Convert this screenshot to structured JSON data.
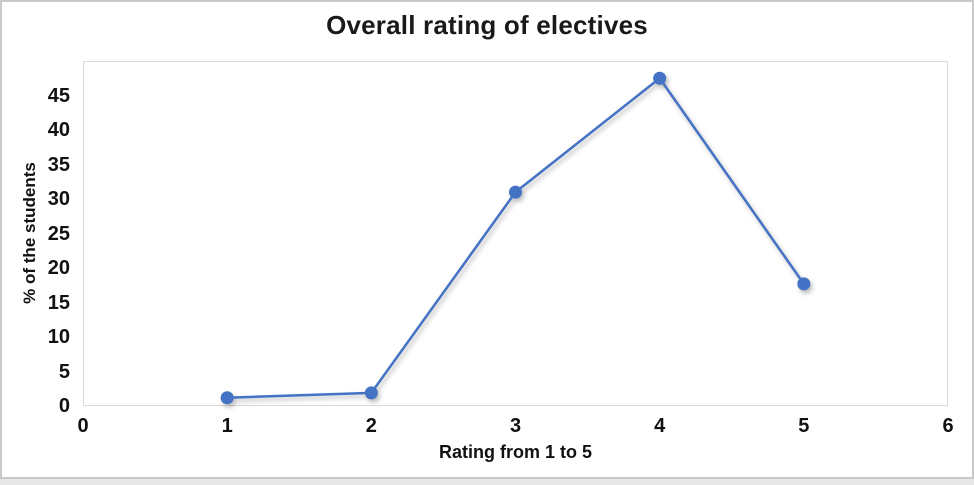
{
  "chart_data": {
    "type": "line",
    "title": "Overall rating of electives",
    "xlabel": "Rating from 1 to 5",
    "ylabel": "% of the students",
    "x": [
      1,
      2,
      3,
      4,
      5
    ],
    "values": [
      1.2,
      1.9,
      31,
      47.5,
      17.7
    ],
    "xlim": [
      0,
      6
    ],
    "ylim": [
      0,
      50
    ],
    "x_ticks": [
      "0",
      "1",
      "2",
      "3",
      "4",
      "5",
      "6"
    ],
    "y_ticks": [
      "0",
      "5",
      "10",
      "15",
      "20",
      "25",
      "30",
      "35",
      "40",
      "45"
    ],
    "grid": false,
    "legend": false,
    "line_color": "#4472C4",
    "marker_color": "#4472C4",
    "marker_shape": "circle",
    "plot_border_color": "#d9d9d9",
    "title_color": "#1a1a1a",
    "text_color": "#111111"
  }
}
